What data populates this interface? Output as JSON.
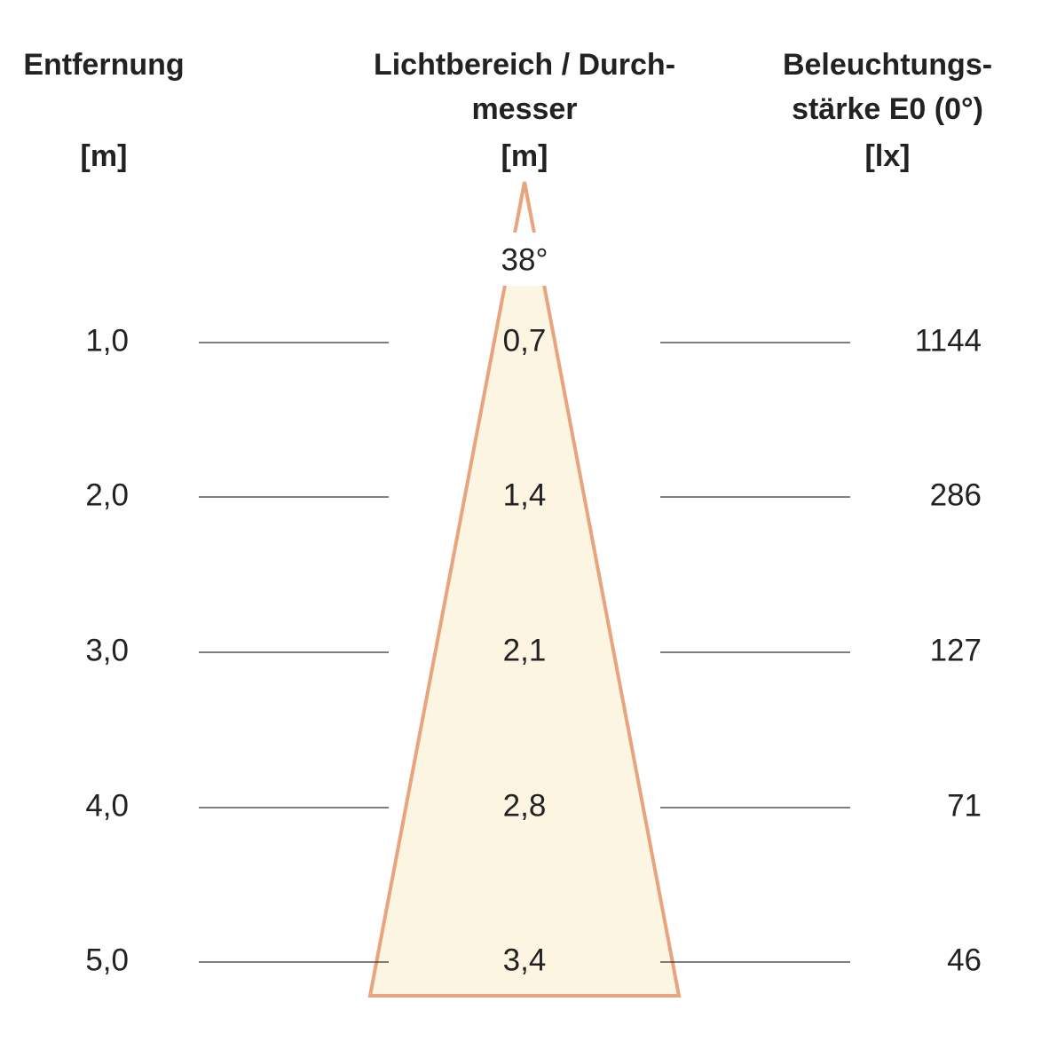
{
  "headers": {
    "left": [
      "Entfernung",
      "[m]"
    ],
    "middle": [
      "Lichtbereich / Durch-",
      "messer",
      "[m]"
    ],
    "right": [
      "Beleuchtungs-",
      "stärke E0 (0°)",
      "[lx]"
    ]
  },
  "angle": "38°",
  "rows": [
    [
      "1,0",
      "0,7",
      "1144"
    ],
    [
      "2,0",
      "1,4",
      "286"
    ],
    [
      "3,0",
      "2,1",
      "127"
    ],
    [
      "4,0",
      "2,8",
      "71"
    ],
    [
      "5,0",
      "3,4",
      "46"
    ]
  ]
}
